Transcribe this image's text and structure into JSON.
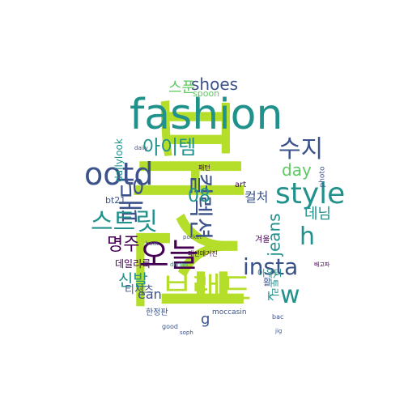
{
  "wordcloud": {
    "colors": {
      "purple": "#440154",
      "indigo": "#3b528b",
      "teal": "#21918c",
      "green": "#5ec962",
      "lime": "#b5de2b",
      "yellow": "#d9e021"
    },
    "words": [
      {
        "text": "패션",
        "color": "#b5de2b"
      },
      {
        "text": "fashion",
        "color": "#21918c"
      },
      {
        "text": "ootd",
        "color": "#3b528b"
      },
      {
        "text": "style",
        "color": "#21918c"
      },
      {
        "text": "오늘",
        "color": "#440154"
      },
      {
        "text": "브랜드",
        "color": "#b5de2b"
      },
      {
        "text": "패딩",
        "color": "#3b528b"
      },
      {
        "text": "컬렉션",
        "color": "#3b528b"
      },
      {
        "text": "스트릿",
        "color": "#21918c"
      },
      {
        "text": "아이템",
        "color": "#21918c"
      },
      {
        "text": "수지",
        "color": "#3b528b"
      },
      {
        "text": "insta",
        "color": "#3b528b"
      },
      {
        "text": "w",
        "color": "#21918c"
      },
      {
        "text": "h",
        "color": "#21918c"
      },
      {
        "text": "shoes",
        "color": "#3b528b"
      },
      {
        "text": "스푼",
        "color": "#5ec962"
      },
      {
        "text": "명주",
        "color": "#440154"
      },
      {
        "text": "08",
        "color": "#21918c"
      },
      {
        "text": "day",
        "color": "#5ec962"
      },
      {
        "text": "jeans",
        "color": "#21918c"
      },
      {
        "text": "데님",
        "color": "#21918c"
      },
      {
        "text": "신발",
        "color": "#21918c"
      },
      {
        "text": "ean",
        "color": "#3b528b"
      },
      {
        "text": "컬처",
        "color": "#3b528b"
      },
      {
        "text": "spoon",
        "color": "#5ec962"
      },
      {
        "text": "dailylook",
        "color": "#21918c"
      },
      {
        "text": "bt21",
        "color": "#3b528b"
      },
      {
        "text": "데일리룩",
        "color": "#440154"
      },
      {
        "text": "티셔츠",
        "color": "#3b528b"
      },
      {
        "text": "겨울",
        "color": "#440154"
      },
      {
        "text": "아우터",
        "color": "#21918c"
      },
      {
        "text": "활",
        "color": "#3b528b"
      },
      {
        "text": "art",
        "color": "#440154"
      },
      {
        "text": "패션매거진",
        "color": "#440154"
      },
      {
        "text": "스토리",
        "color": "#21918c"
      },
      {
        "text": "photo",
        "color": "#3b528b"
      },
      {
        "text": "한정판",
        "color": "#3b528b"
      },
      {
        "text": "moccasin",
        "color": "#3b528b"
      },
      {
        "text": "good",
        "color": "#3b528b"
      },
      {
        "text": "pocket",
        "color": "#3b528b"
      },
      {
        "text": "boat",
        "color": "#3b528b"
      },
      {
        "text": "k",
        "color": "#21918c"
      },
      {
        "text": "g",
        "color": "#3b528b"
      },
      {
        "text": "bac",
        "color": "#3b528b"
      },
      {
        "text": "daily",
        "color": "#3b528b"
      },
      {
        "text": "패턴",
        "color": "#440154"
      },
      {
        "text": "jig",
        "color": "#3b528b"
      },
      {
        "text": "denim",
        "color": "#21918c"
      },
      {
        "text": "soph",
        "color": "#3b528b"
      },
      {
        "text": "배고파",
        "color": "#440154"
      }
    ],
    "tiny_count_note": ""
  }
}
